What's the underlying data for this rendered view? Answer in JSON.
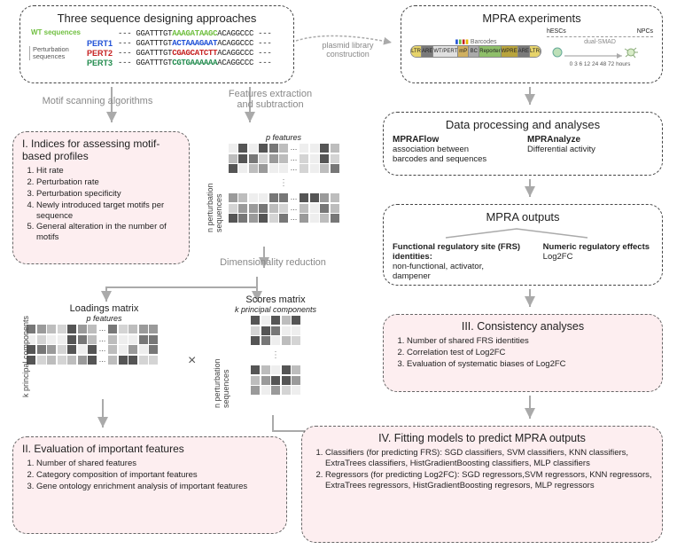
{
  "colors": {
    "wt": "#6fbf3f",
    "pert1": "#1e4fd6",
    "pert2": "#c62020",
    "pert3": "#1f8a4c",
    "pink_bg": "#fdeef0",
    "grey_text": "#888888",
    "cell_shades": [
      "#eeeeee",
      "#d4d4d4",
      "#bdbdbd",
      "#9a9a9a",
      "#777777",
      "#555555",
      "#ffffff"
    ],
    "plasmid": {
      "ltr": "#e6d36a",
      "are": "#7a7a7a",
      "var": "#e0e0e0",
      "mp": "#d0b060",
      "bc": "#aaaaaa",
      "rep": "#8fbf6a",
      "wpre": "#b8a43d"
    }
  },
  "top_left": {
    "title": "Three sequence designing approaches",
    "wt_label": "WT sequences",
    "pert_group_label": "Perturbation\nsequences",
    "rows": [
      {
        "label": "",
        "color_key": "wt",
        "pre": "--- GGATTTGT",
        "mid": "AAAGATAAGC",
        "post": "ACAGGCCC ---"
      },
      {
        "label": "PERT1",
        "color_key": "pert1",
        "pre": "--- GGATTTGT",
        "mid": "ACTAAAGAAT",
        "post": "ACAGGCCC ---"
      },
      {
        "label": "PERT2",
        "color_key": "pert2",
        "pre": "--- GGATTTGT",
        "mid": "CGAGCATCTT",
        "post": "ACAGGCCC ---"
      },
      {
        "label": "PERT3",
        "color_key": "pert3",
        "pre": "--- GGATTTGT",
        "mid": "CGTGAAAAAA",
        "post": "ACAGGCCC ---"
      }
    ]
  },
  "arrows": {
    "motif_scan": "Motif scanning algorithms",
    "feat_extract": "Features extraction\nand subtraction",
    "plasmid": "plasmid library\nconstruction",
    "dim_red": "Dimensionality reduction"
  },
  "box_I": {
    "heading": "I.   Indices for assessing motif-based profiles",
    "items": [
      "Hit rate",
      "Perturbation rate",
      "Perturbation specificity",
      "Newly introduced target motifs per sequence",
      "General alteration in the number of motifs"
    ]
  },
  "feature_matrix": {
    "top_label": "p features",
    "side_label": "n perturbation\nsequences"
  },
  "loadings": {
    "title": "Loadings matrix",
    "top_label": "p features",
    "side_label": "k principal components"
  },
  "scores": {
    "title": "Scores matrix",
    "top_label": "k principal components",
    "side_label": "n perturbation\nsequences"
  },
  "box_II": {
    "heading": "II.  Evaluation of important features",
    "items": [
      "Number of shared features",
      "Category composition of important features",
      "Gene ontology enrichment analysis of important features"
    ]
  },
  "mpra_exp": {
    "title": "MPRA experiments",
    "plasmid_parts": [
      "LTR",
      "ARE",
      "WT/PERT",
      "mP",
      "BC",
      "Reporter",
      "WPRE",
      "ARE",
      "LTR"
    ],
    "barcodes_label": "Barcodes",
    "hescs": "hESCs",
    "npcs": "NPCs",
    "dual_smad": "dual-SMAD",
    "timepoints": "0 3 6 12  24   48   72 hours"
  },
  "data_proc": {
    "title": "Data processing and analyses",
    "left_name": "MPRAFlow",
    "left_desc": "association between\nbarcodes and sequences",
    "right_name": "MPRAnalyze",
    "right_desc": "Differential activity"
  },
  "mpra_out": {
    "title": "MPRA outputs",
    "left_name": "Functional regulatory site (FRS) identities:",
    "left_desc": "non-functional, activator,\ndampener",
    "right_name": "Numeric regulatory effects",
    "right_desc": "Log2FC"
  },
  "box_III": {
    "heading": "III.  Consistency analyses",
    "items": [
      "Number of shared FRS identities",
      "Correlation test of Log2FC",
      "Evaluation of systematic biases of Log2FC"
    ]
  },
  "box_IV": {
    "heading": "IV.  Fitting models to predict MPRA outputs",
    "items": [
      "Classifiers (for predicting FRS): SGD classifiers, SVM classifiers, KNN classifiers,  ExtraTrees classifiers, HistGradientBoosting classifiers, MLP classifiers",
      "Regressors (for predicting Log2FC): SGD regressors,SVM regressors, KNN regressors, ExtraTrees regressors, HistGradientBoosting regresors, MLP regressors"
    ]
  }
}
